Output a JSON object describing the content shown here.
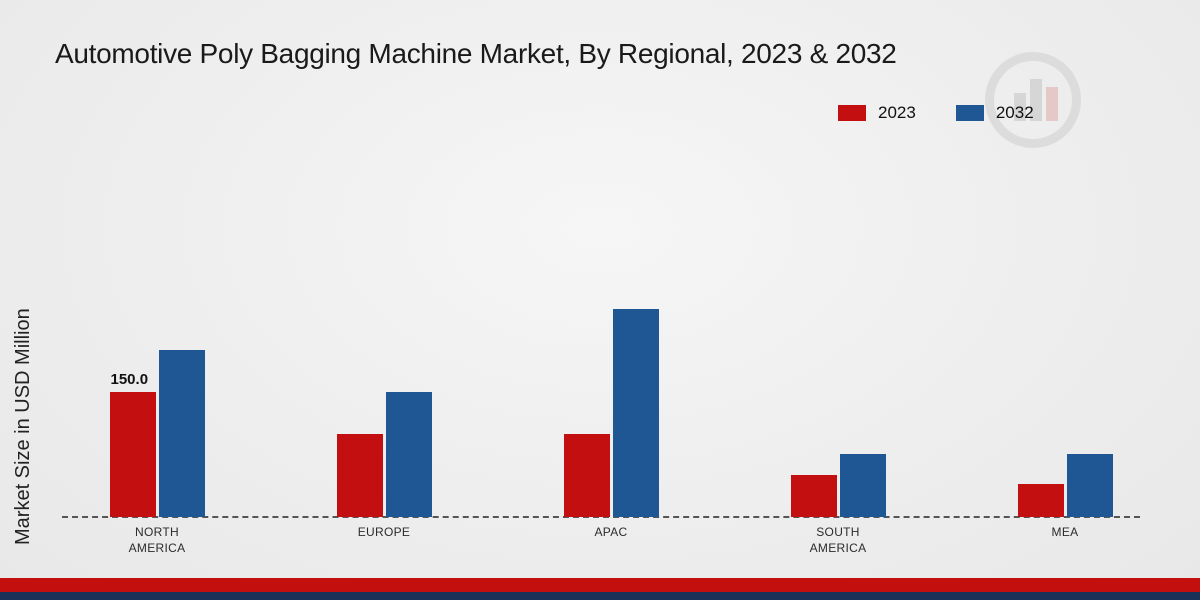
{
  "title": "Automotive Poly Bagging Machine Market, By Regional, 2023 & 2032",
  "ylabel": "Market Size in USD Million",
  "chart_data": {
    "type": "bar",
    "categories": [
      [
        "NORTH",
        "AMERICA"
      ],
      [
        "EUROPE"
      ],
      [
        "APAC"
      ],
      [
        "SOUTH",
        "AMERICA"
      ],
      [
        "MEA"
      ]
    ],
    "series": [
      {
        "name": "2023",
        "color": "#c40f11",
        "values": [
          150,
          100,
          100,
          50,
          40
        ]
      },
      {
        "name": "2032",
        "color": "#1f5795",
        "values": [
          200,
          150,
          250,
          75,
          75
        ]
      }
    ],
    "annotations": [
      {
        "series_index": 0,
        "category_index": 0,
        "text": "150.0"
      }
    ],
    "title": "Automotive Poly Bagging Machine Market, By Regional, 2023 & 2032",
    "xlabel": "",
    "ylabel": "Market Size in USD Million",
    "ylim": [
      0,
      250
    ],
    "grid": false,
    "legend_position": "top-right",
    "baseline_style": "dashed"
  }
}
